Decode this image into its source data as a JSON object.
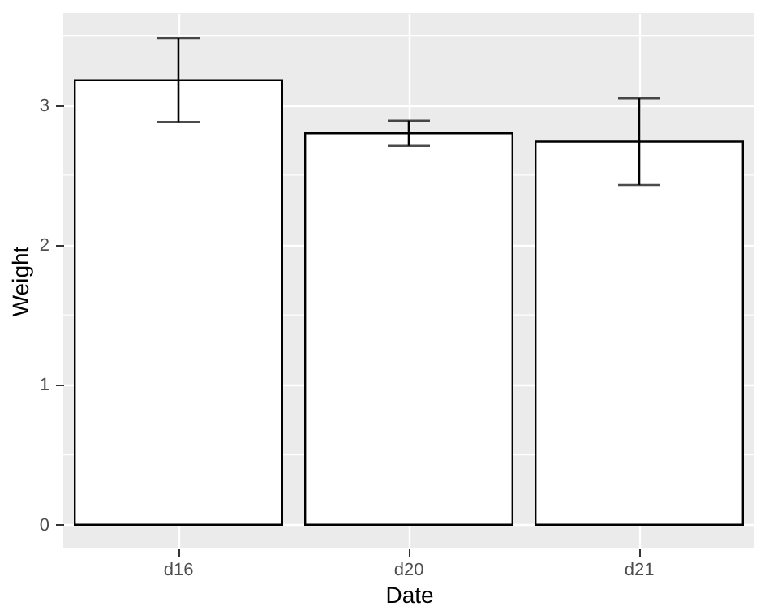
{
  "chart_data": {
    "type": "bar",
    "xlabel": "Date",
    "ylabel": "Weight",
    "categories": [
      "d16",
      "d20",
      "d21"
    ],
    "values": [
      3.18,
      2.8,
      2.74
    ],
    "errors": [
      [
        2.88,
        3.48
      ],
      [
        2.71,
        2.89
      ],
      [
        2.43,
        3.05
      ]
    ],
    "color": "#ffffff",
    "ylim": [
      -0.17,
      3.66
    ],
    "yticks": [
      0,
      1,
      2,
      3
    ],
    "grid": true
  }
}
